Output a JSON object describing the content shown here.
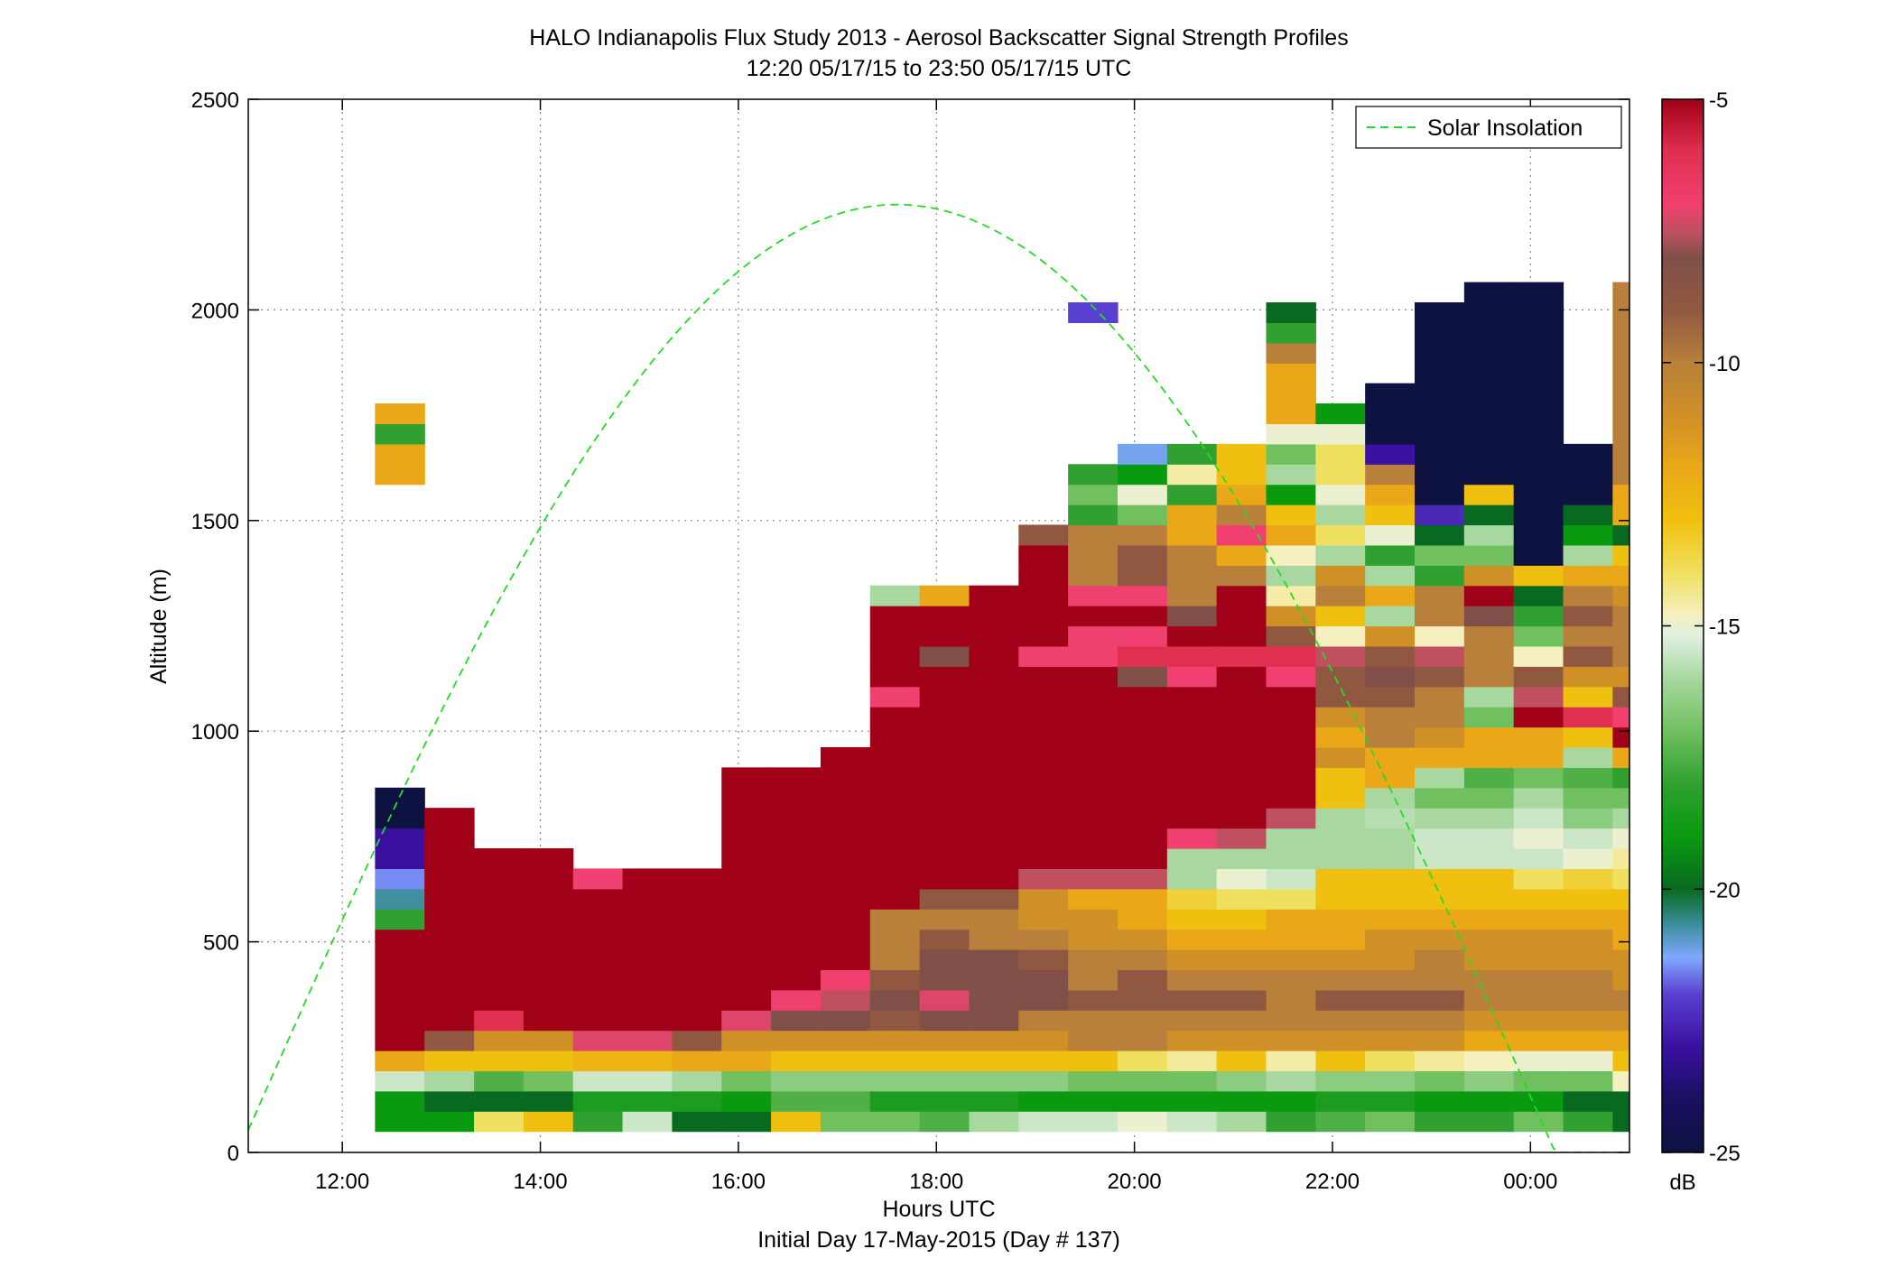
{
  "chart_data": {
    "type": "heatmap",
    "title": "HALO Indianapolis Flux Study 2013 - Aerosol Backscatter Signal Strength Profiles",
    "subtitle": "12:20 05/17/15 to 23:50 05/17/15  UTC",
    "xlabel": "Hours UTC",
    "xlabel2": "Initial Day 17-May-2015 (Day # 137)",
    "ylabel": "Altitude (m)",
    "xlim": [
      11.05,
      25.0
    ],
    "ylim": [
      0,
      2500
    ],
    "x_ticks": [
      {
        "value": 12,
        "label": "12:00"
      },
      {
        "value": 14,
        "label": "14:00"
      },
      {
        "value": 16,
        "label": "16:00"
      },
      {
        "value": 18,
        "label": "18:00"
      },
      {
        "value": 20,
        "label": "20:00"
      },
      {
        "value": 22,
        "label": "22:00"
      },
      {
        "value": 24,
        "label": "00:00"
      }
    ],
    "y_ticks": [
      {
        "value": 0,
        "label": "0"
      },
      {
        "value": 500,
        "label": "500"
      },
      {
        "value": 1000,
        "label": "1000"
      },
      {
        "value": 1500,
        "label": "1500"
      },
      {
        "value": 2000,
        "label": "2000"
      },
      {
        "value": 2500,
        "label": "2500"
      }
    ],
    "grid": true,
    "colorbar": {
      "label": "dB",
      "range": [
        -25,
        -5
      ],
      "ticks": [
        {
          "value": -5,
          "label": "-5"
        },
        {
          "value": -10,
          "label": "-10"
        },
        {
          "value": -15,
          "label": "-15"
        },
        {
          "value": -20,
          "label": "-20"
        },
        {
          "value": -25,
          "label": "-25"
        }
      ],
      "stops": [
        {
          "value": -25,
          "color": "#0d1240"
        },
        {
          "value": -24,
          "color": "#1a1060"
        },
        {
          "value": -23,
          "color": "#3a10a0"
        },
        {
          "value": -22,
          "color": "#5a40d0"
        },
        {
          "value": -21.3,
          "color": "#80a8ff"
        },
        {
          "value": -20.7,
          "color": "#3f8fa0"
        },
        {
          "value": -20,
          "color": "#086a20"
        },
        {
          "value": -19,
          "color": "#0a9a10"
        },
        {
          "value": -18,
          "color": "#30a030"
        },
        {
          "value": -17,
          "color": "#70c060"
        },
        {
          "value": -16,
          "color": "#a8d8a0"
        },
        {
          "value": -15.2,
          "color": "#e0f0e0"
        },
        {
          "value": -14.8,
          "color": "#f5f0c0"
        },
        {
          "value": -14,
          "color": "#f0e060"
        },
        {
          "value": -13,
          "color": "#f0c010"
        },
        {
          "value": -12,
          "color": "#eaa818"
        },
        {
          "value": -11,
          "color": "#d09028"
        },
        {
          "value": -10,
          "color": "#b8803a"
        },
        {
          "value": -9,
          "color": "#905840"
        },
        {
          "value": -8,
          "color": "#805048"
        },
        {
          "value": -7.5,
          "color": "#c05060"
        },
        {
          "value": -7,
          "color": "#f04070"
        },
        {
          "value": -6,
          "color": "#e03050"
        },
        {
          "value": -5,
          "color": "#a00018"
        }
      ]
    },
    "cells": {
      "time_start": 12.33,
      "time_step": 0.5,
      "alt_start": 50,
      "alt_step": 48,
      "profiles": [
        [
          -19,
          -19,
          -15.5,
          -12,
          -5,
          -5,
          -5,
          -5,
          -5,
          -5,
          -18,
          -20.7,
          -21.5,
          -23,
          -23,
          -25,
          -25,
          null,
          null,
          null,
          null,
          null,
          null,
          null,
          null,
          null,
          null,
          null,
          null,
          null,
          null,
          null,
          -12,
          -12,
          -18,
          -12
        ],
        [
          -19,
          -20,
          -16,
          -13,
          -9,
          -5,
          -5,
          -5,
          -5,
          -5,
          -5,
          -5,
          -5,
          -5,
          -5,
          -5
        ],
        [
          -14,
          -20,
          -17.5,
          -13,
          -11,
          -6,
          -5,
          -5,
          -5,
          -5,
          -5,
          -5,
          -5,
          -5
        ],
        [
          -13,
          -20,
          -17,
          -13,
          -11,
          -5,
          -5,
          -5,
          -5,
          -5,
          -5,
          -5,
          -5,
          -5
        ],
        [
          -18,
          -18.5,
          -15.5,
          -12.5,
          -7.2,
          -5,
          -5,
          -5,
          -5,
          -5,
          -5,
          -5,
          -7
        ],
        [
          -15.5,
          -18.5,
          -15.5,
          -12.5,
          -7.2,
          -5,
          -5,
          -5,
          -5,
          -5,
          -5,
          -5,
          -5
        ],
        [
          -20,
          -18.5,
          -16,
          -12,
          -9,
          -5,
          -5,
          -5,
          -5,
          -5,
          -5,
          -5,
          -5
        ],
        [
          -20,
          -19,
          -17,
          -12,
          -11,
          -7.2,
          -5,
          -5,
          -5,
          -5,
          -5,
          -5,
          -5,
          -5,
          -5,
          -5,
          -5,
          -5
        ],
        [
          -13,
          -17.5,
          -16.5,
          -13,
          -11,
          -8,
          -7,
          -5,
          -5,
          -5,
          -5,
          -5,
          -5,
          -5,
          -5,
          -5,
          -5,
          -5
        ],
        [
          -17,
          -17.5,
          -16.5,
          -13,
          -11,
          -8,
          -7.5,
          -7,
          -5,
          -5,
          -5,
          -5,
          -5,
          -5,
          -5,
          -5,
          -5,
          -5,
          -5
        ],
        [
          -17,
          -18.5,
          -16.5,
          -13,
          -11,
          -9,
          -8,
          -9,
          -10,
          -10,
          -10,
          -5,
          -5,
          -5,
          -5,
          -5,
          -5,
          -5,
          -5,
          -5,
          -5,
          -7,
          -5,
          -5,
          -5,
          -5,
          -16
        ],
        [
          -17.5,
          -18.5,
          -16.5,
          -13,
          -11,
          -8,
          -7.2,
          -8,
          -8,
          -9,
          -10,
          -9,
          -5,
          -5,
          -5,
          -5,
          -5,
          -5,
          -5,
          -5,
          -5,
          -5,
          -5,
          -8,
          -5,
          -5,
          -12
        ],
        [
          -16,
          -18.5,
          -16.5,
          -13,
          -11,
          -8,
          -8,
          -8,
          -8,
          -10,
          -10,
          -9,
          -5,
          -5,
          -5,
          -5,
          -5,
          -5,
          -5,
          -5,
          -5,
          -5,
          -5,
          -5,
          -5,
          -5,
          -5
        ],
        [
          -15.5,
          -19,
          -16.5,
          -13,
          -11,
          -10,
          -8,
          -8,
          -9,
          -10,
          -11,
          -11,
          -7.5,
          -5,
          -5,
          -5,
          -5,
          -5,
          -5,
          -5,
          -5,
          -5,
          -5,
          -7,
          -5,
          -5,
          -5,
          -5,
          -5,
          -9
        ],
        [
          -15.5,
          -19,
          -17,
          -13,
          -10,
          -10,
          -9,
          -10,
          -10,
          -11,
          -11,
          -12,
          -7.5,
          -5,
          -5,
          -5,
          -5,
          -5,
          -5,
          -5,
          -5,
          -5,
          -5,
          -7,
          -7,
          -5,
          -7,
          -10,
          -10,
          -10,
          -18,
          -17,
          -18,
          null,
          null,
          null,
          null,
          null,
          null,
          null,
          -22
        ],
        [
          -15,
          -19,
          -17,
          -14,
          -10,
          -10,
          -9,
          -9,
          -10,
          -11,
          -12,
          -12,
          -7.5,
          -5,
          -5,
          -5,
          -5,
          -5,
          -5,
          -5,
          -5,
          -5,
          -8,
          -6,
          -7,
          -5,
          -7,
          -9,
          -9,
          -10,
          -17,
          -15,
          -19,
          -21.2
        ],
        [
          -15.5,
          -19,
          -17,
          -14.5,
          -11,
          -10,
          -9,
          -10,
          -11,
          -12,
          -13,
          -13.5,
          -16,
          -16,
          -7,
          -5,
          -5,
          -5,
          -5,
          -5,
          -5,
          -5,
          -7,
          -6,
          -5,
          -8,
          -10,
          -10,
          -10,
          -12,
          -12,
          -18,
          -14.6,
          -18
        ],
        [
          -16,
          -19,
          -16.5,
          -13,
          -11,
          -10,
          -9,
          -10,
          -11,
          -12,
          -13,
          -14,
          -15,
          -16,
          -7.5,
          -5,
          -5,
          -5,
          -5,
          -5,
          -5,
          -5,
          -5,
          -6,
          -5,
          -5,
          -5,
          -10,
          -12,
          -7,
          -10,
          -12,
          -13,
          -13
        ],
        [
          -18,
          -19,
          -16,
          -14.6,
          -11,
          -10,
          -10,
          -10,
          -11,
          -12,
          -12,
          -14,
          -15.5,
          -16,
          -16,
          -7.5,
          -5,
          -5,
          -5,
          -5,
          -5,
          -5,
          -7,
          -6,
          -9,
          -11,
          -14.6,
          -16,
          -14.8,
          -12,
          -13,
          -19,
          -16,
          -17,
          -15,
          -12,
          -12,
          -12,
          -10,
          -18,
          -20
        ],
        [
          -17.5,
          -18.5,
          -16.5,
          -13,
          -11,
          -10,
          -9,
          -10,
          -11,
          -12,
          -12,
          -13,
          -13,
          -16,
          -16,
          -16,
          -13,
          -13,
          -11,
          -12,
          -11,
          -9,
          -9,
          -7.5,
          -14.8,
          -13,
          -10,
          -11,
          -16,
          -14,
          -16,
          -15,
          -14,
          -14,
          -15,
          -19
        ],
        [
          -17,
          -18.5,
          -16.5,
          -14,
          -11,
          -10,
          -9,
          -10,
          -11,
          -11,
          -12,
          -13,
          -13,
          -16,
          -16,
          -15.8,
          -16,
          -12,
          -12,
          -10,
          -10,
          -9,
          -8,
          -9,
          -11,
          -16,
          -12,
          -16,
          -18,
          -15,
          -13,
          -12,
          -10,
          -23,
          -25,
          -25,
          -25
        ],
        [
          -18,
          -19,
          -17,
          -14.5,
          -11,
          -10,
          -9,
          -10,
          -10,
          -11,
          -12,
          -13,
          -13,
          -15.5,
          -15.5,
          -16,
          -17,
          -16,
          -12,
          -11,
          -10,
          -10,
          -9,
          -7.5,
          -14.8,
          -10,
          -10,
          -18,
          -17,
          -20,
          -22.5,
          -25,
          -25,
          -25,
          -25,
          -25,
          -25,
          -25,
          -25,
          -25,
          -25
        ],
        [
          -18,
          -19,
          -16.5,
          -14.8,
          -12,
          -11,
          -10,
          -10,
          -11,
          -11,
          -12,
          -13,
          -13,
          -15.5,
          -15.5,
          -16,
          -17,
          -17.5,
          -12,
          -12,
          -17,
          -16,
          -10,
          -10,
          -10,
          -8,
          -5,
          -11,
          -17,
          -16,
          -20,
          -13,
          -25,
          -25,
          -25,
          -25,
          -25,
          -25,
          -25,
          -25,
          -25,
          -25
        ],
        [
          -17,
          -19,
          -17,
          -15,
          -12,
          -11,
          -10,
          -10,
          -11,
          -11,
          -12,
          -13,
          -14,
          -15.5,
          -15,
          -15.5,
          -16,
          -17,
          -12,
          -12,
          -5,
          -7.5,
          -9,
          -14.8,
          -17,
          -18,
          -20,
          -13,
          -25,
          -25,
          -25,
          -25,
          -25,
          -25,
          -25,
          -25,
          -25,
          -25,
          -25,
          -25,
          -25,
          -25
        ],
        [
          -18,
          -20,
          -17,
          -15,
          -12,
          -11,
          -10,
          -10,
          -11,
          -11,
          -12,
          -13,
          -13.5,
          -15,
          -15.5,
          -16.5,
          -17,
          -17.5,
          -16,
          -13,
          -6,
          -13,
          -11,
          -9,
          -10,
          -9,
          -10,
          -12,
          -16,
          -19,
          -20,
          -25,
          -25,
          -25
        ],
        [
          -20,
          -20,
          -14.8,
          -13,
          -12,
          -11,
          -10,
          -11,
          -11,
          -12,
          -12,
          -13,
          -14,
          -14.5,
          -15,
          -16,
          -17,
          -18,
          -12,
          -5,
          -7,
          -9,
          -11,
          -10,
          -10,
          -10,
          -11,
          -12,
          -13,
          -20,
          -12,
          -12,
          -10,
          -10,
          -10,
          -10,
          -10,
          -10,
          -10,
          -10,
          -10,
          -10
        ]
      ]
    },
    "legend": {
      "placement": "top-right",
      "entries": [
        {
          "name": "Solar Insolation",
          "color": "#22dd22",
          "style": "dashed"
        }
      ]
    },
    "solar_curve": {
      "peak_time": 17.6,
      "peak_alt": 2250,
      "half_width": 6.65,
      "range": [
        11.05,
        25.0
      ]
    }
  }
}
